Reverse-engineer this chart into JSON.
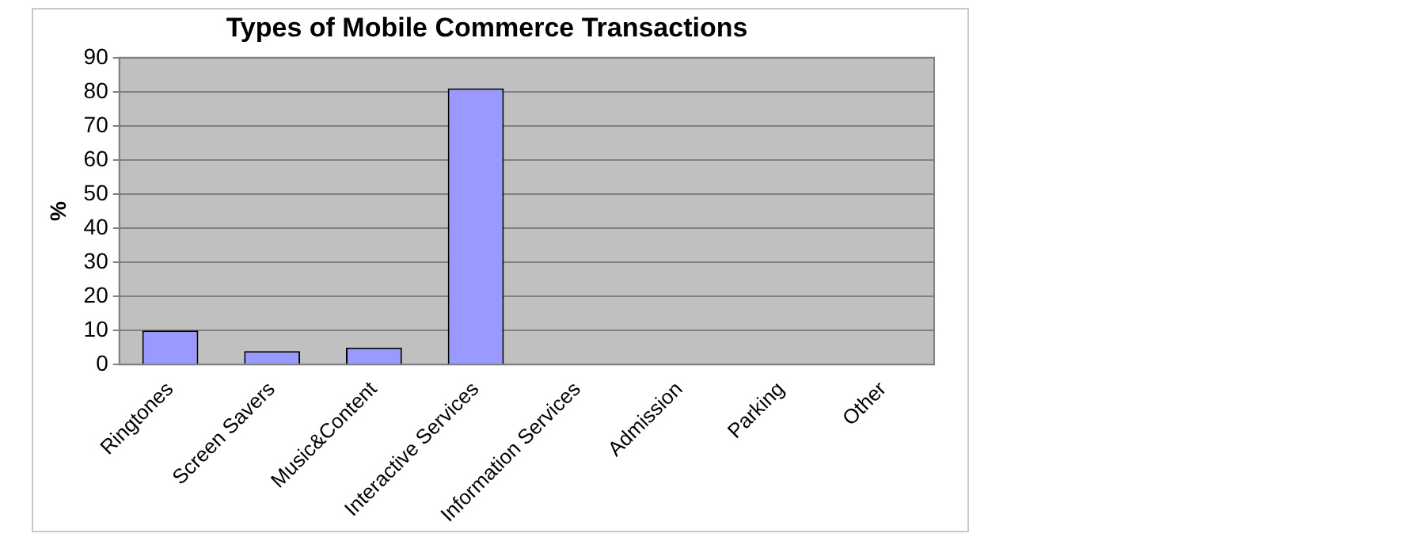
{
  "chart_data": {
    "type": "bar",
    "title": "Types of Mobile Commerce Transactions",
    "ylabel": "%",
    "categories": [
      "Ringtones",
      "Screen Savers",
      "Music&Content",
      "Interactive Services",
      "Information Services",
      "Admission",
      "Parking",
      "Other"
    ],
    "values": [
      10,
      4,
      5,
      81,
      0,
      0,
      0,
      0
    ],
    "color": "#9999ff",
    "ylim": [
      0,
      90
    ],
    "yticks": [
      0,
      10,
      20,
      30,
      40,
      50,
      60,
      70,
      80,
      90
    ],
    "grid": "y",
    "legend": false
  }
}
